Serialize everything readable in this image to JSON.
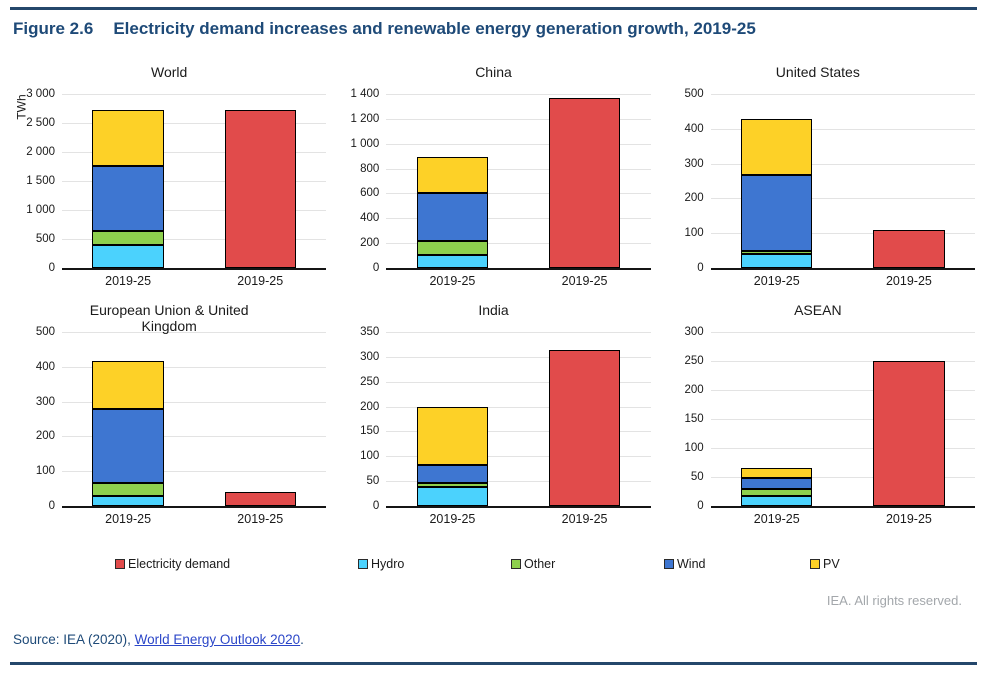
{
  "figure": {
    "label": "Figure 2.6",
    "title": "Electricity demand increases and renewable energy generation growth, 2019-25"
  },
  "unit_label": "TWh",
  "colors": {
    "demand": "#e14b4b",
    "hydro": "#4bd2fd",
    "other": "#8ed04e",
    "wind": "#3e76d1",
    "pv": "#fdd127",
    "accent_navy": "#24476b",
    "link_blue": "#2b46c8",
    "grid": "#e3e3e3"
  },
  "legend": [
    {
      "label": "Electricity demand",
      "color": "#e14b4b"
    },
    {
      "label": "Hydro",
      "color": "#4bd2fd"
    },
    {
      "label": "Other",
      "color": "#8ed04e"
    },
    {
      "label": "Wind",
      "color": "#3e76d1"
    },
    {
      "label": "PV",
      "color": "#fdd127"
    }
  ],
  "chart_data": {
    "type": "bar",
    "unit": "TWh",
    "title": "Electricity demand increases and renewable energy generation growth, 2019-25",
    "stack_order": [
      "Hydro",
      "Other",
      "Wind",
      "PV"
    ],
    "x_labels": [
      "2019-25",
      "2019-25"
    ],
    "grid": true,
    "panels": [
      {
        "title": "World",
        "ylim": [
          0,
          3000
        ],
        "ytick_step": 500,
        "renewables": {
          "Hydro": 390,
          "Other": 250,
          "Wind": 1120,
          "PV": 960
        },
        "electricity_demand": 2730
      },
      {
        "title": "China",
        "ylim": [
          0,
          1400
        ],
        "ytick_step": 200,
        "renewables": {
          "Hydro": 105,
          "Other": 110,
          "Wind": 385,
          "PV": 295
        },
        "electricity_demand": 1370
      },
      {
        "title": "United States",
        "ylim": [
          0,
          500
        ],
        "ytick_step": 100,
        "renewables": {
          "Hydro": 40,
          "Other": 10,
          "Wind": 217,
          "PV": 160
        },
        "electricity_demand": 108
      },
      {
        "title": "European Union & United\nKingdom",
        "ylim": [
          0,
          500
        ],
        "ytick_step": 100,
        "renewables": {
          "Hydro": 30,
          "Other": 35,
          "Wind": 215,
          "PV": 137
        },
        "electricity_demand": 40
      },
      {
        "title": "India",
        "ylim": [
          0,
          350
        ],
        "ytick_step": 50,
        "renewables": {
          "Hydro": 38,
          "Other": 8,
          "Wind": 36,
          "PV": 118
        },
        "electricity_demand": 313
      },
      {
        "title": "ASEAN",
        "ylim": [
          0,
          300
        ],
        "ytick_step": 50,
        "renewables": {
          "Hydro": 17,
          "Other": 13,
          "Wind": 18,
          "PV": 17
        },
        "electricity_demand": 250
      }
    ]
  },
  "footer": {
    "rights": "IEA. All rights reserved.",
    "source_prefix": "Source: IEA (2020), ",
    "source_link": "World Energy Outlook 2020",
    "source_suffix": "."
  }
}
